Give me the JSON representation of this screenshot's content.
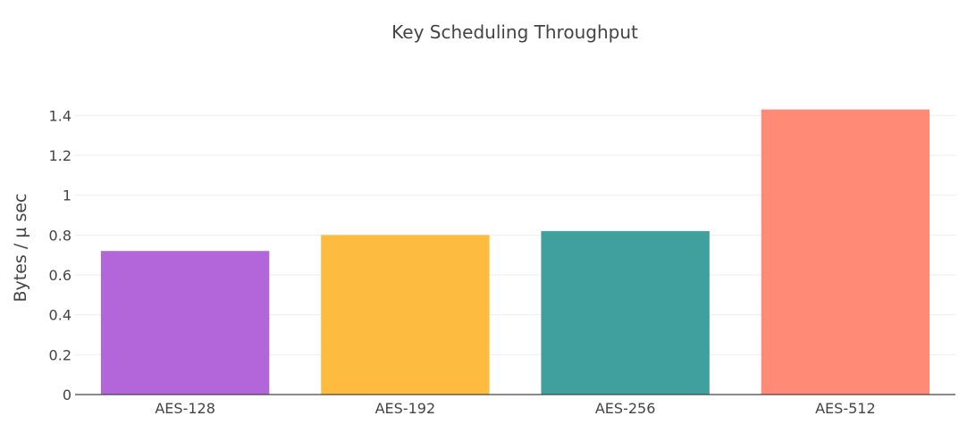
{
  "chart_data": {
    "type": "bar",
    "title": "Key Scheduling Throughput",
    "xlabel": "",
    "ylabel": "Bytes / µ sec",
    "categories": [
      "AES-128",
      "AES-192",
      "AES-256",
      "AES-512"
    ],
    "values": [
      0.72,
      0.8,
      0.82,
      1.43
    ],
    "colors": [
      "#b266da",
      "#fdbb40",
      "#40a09e",
      "#ff8a76"
    ],
    "ylim": [
      0,
      1.5
    ],
    "yticks": [
      0,
      0.2,
      0.4,
      0.6,
      0.8,
      1,
      1.2,
      1.4
    ],
    "ytick_labels": [
      "0",
      "0.2",
      "0.4",
      "0.6",
      "0.8",
      "1",
      "1.2",
      "1.4"
    ],
    "grid": true,
    "legend": "none"
  }
}
